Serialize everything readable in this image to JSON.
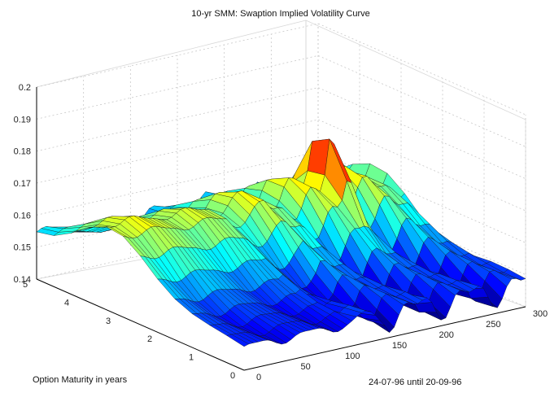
{
  "chart_data": {
    "type": "surface",
    "title": "10-yr SMM: Swaption Implied Volatility Curve",
    "xlabel": "Option Maturity in years",
    "annotation": "24-07-96 until 20-09-96",
    "zlim": [
      0.14,
      0.2
    ],
    "x_ticks": [
      "0",
      "1",
      "2",
      "3",
      "4",
      "5"
    ],
    "y_ticks": [
      "0",
      "50",
      "100",
      "150",
      "200",
      "250",
      "300"
    ],
    "z_ticks": [
      "0.14",
      "0.15",
      "0.16",
      "0.17",
      "0.18",
      "0.19",
      "0.2"
    ],
    "grid": true,
    "colormap": "jet"
  }
}
